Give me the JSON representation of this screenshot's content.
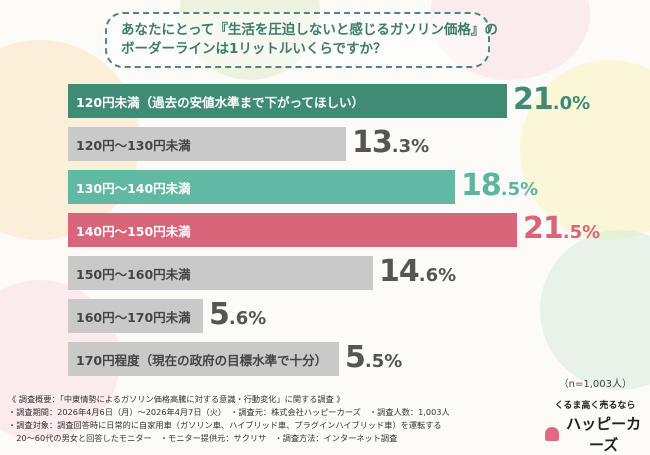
{
  "question": {
    "line1": "あなたにとって『生活を圧迫しないと感じるガソリン価格』の",
    "line2": "ボーダーラインは1リットルいくらですか？"
  },
  "chart_data": {
    "type": "bar",
    "orientation": "horizontal",
    "unit": "%",
    "categories": [
      "120円未満（過去の安値水準まで下がってほしい）",
      "120円～130円未満",
      "130円～140円未満",
      "140円～150円未満",
      "150円～160円未満",
      "160円～170円未満",
      "170円程度（現在の政府の目標水準で十分）"
    ],
    "values": [
      21.0,
      13.3,
      18.5,
      21.5,
      14.6,
      5.6,
      5.5
    ],
    "bar_colors": [
      "#3f8b73",
      "#c9c9c9",
      "#62b9a3",
      "#d8657a",
      "#c9c9c9",
      "#c9c9c9",
      "#c9c9c9"
    ],
    "value_colors": [
      "#3f8b73",
      "#555555",
      "#5cb59e",
      "#d8657a",
      "#555555",
      "#555555",
      "#555555"
    ],
    "sample_size": "（n=1,003人）"
  },
  "notes": {
    "line1": "《 調査概要：「中東情勢によるガソリン価格高騰に対する意識・行動変化」に関する調査 》",
    "line2": "・調査期間：2026年4月6日（月）～2026年4月7日（火）　・調査元：株式会社ハッピーカーズ　・調査人数：1,003人",
    "line3": "・調査対象：調査回答時に日常的に自家用車（ガソリン車、ハイブリッド車、プラグインハイブリッド車）を運転する",
    "line4": "　20～60代の男女と回答したモニター　・モニター提供元：サクリサ　・調査方法：インターネット調査"
  },
  "logo": {
    "tagline": "くるま高く売るなら",
    "brand": "ハッピーカーズ"
  }
}
